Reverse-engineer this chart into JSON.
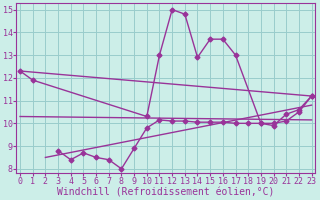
{
  "background_color": "#cceee8",
  "grid_color": "#99cccc",
  "line_color": "#993399",
  "xlabel": "Windchill (Refroidissement éolien,°C)",
  "ylim": [
    7.8,
    15.3
  ],
  "xlim": [
    -0.3,
    23.3
  ],
  "yticks": [
    8,
    9,
    10,
    11,
    12,
    13,
    14,
    15
  ],
  "xticks": [
    0,
    1,
    2,
    3,
    4,
    5,
    6,
    7,
    8,
    9,
    10,
    11,
    12,
    13,
    14,
    15,
    16,
    17,
    18,
    19,
    20,
    21,
    22,
    23
  ],
  "curve1_x": [
    0,
    1,
    10,
    11,
    12,
    13,
    14,
    15,
    16,
    17,
    19,
    20,
    21,
    22,
    23
  ],
  "curve1_y": [
    12.3,
    11.9,
    10.3,
    13.0,
    15.0,
    14.8,
    12.9,
    13.7,
    13.7,
    13.0,
    10.0,
    9.9,
    10.4,
    10.6,
    11.2
  ],
  "curve2_x": [
    3,
    4,
    5,
    6,
    7,
    8,
    9,
    10,
    11,
    12,
    13,
    14,
    15,
    16,
    17,
    18,
    19,
    20,
    21,
    22,
    23
  ],
  "curve2_y": [
    8.8,
    8.4,
    8.7,
    8.5,
    8.4,
    8.0,
    8.9,
    9.8,
    10.15,
    10.1,
    10.1,
    10.05,
    10.05,
    10.05,
    10.0,
    10.0,
    10.0,
    10.0,
    10.1,
    10.5,
    11.2
  ],
  "trend1_x": [
    0,
    23
  ],
  "trend1_y": [
    12.3,
    11.2
  ],
  "trend2_x": [
    0,
    23
  ],
  "trend2_y": [
    10.3,
    10.15
  ],
  "trend3_x": [
    2,
    23
  ],
  "trend3_y": [
    8.5,
    10.8
  ],
  "xlabel_fontsize": 7,
  "tick_fontsize": 6
}
